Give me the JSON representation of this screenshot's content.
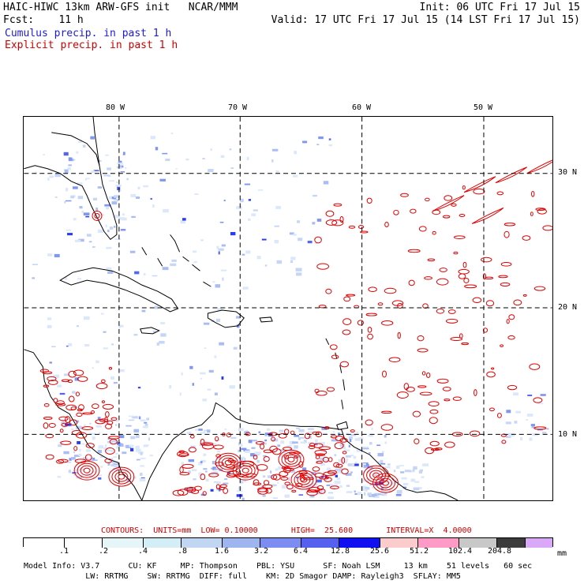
{
  "header": {
    "model_line": "HAIC-HIWC 13km ARW-GFS init   NCAR/MMM",
    "fcst_line": "Fcst:    11 h",
    "init_line": "Init: 06 UTC Fri 17 Jul 15",
    "valid_line": "Valid: 17 UTC Fri 17 Jul 15 (14 LST Fri 17 Jul 15)",
    "cumulus_line": "Cumulus precip. in past 1 h",
    "explicit_line": "Explicit precip. in past 1 h"
  },
  "map": {
    "lon_labels": [
      "80 W",
      "70 W",
      "60 W",
      "50 W"
    ],
    "lat_labels": [
      "30 N",
      "20 N",
      "10 N"
    ],
    "land_color": "#000000",
    "cumulus_color": "#3355ee",
    "explicit_color": "#e00000"
  },
  "contours_info": {
    "text": "CONTOURS:  UNITS=mm  LOW= 0.10000       HIGH=  25.600       INTERVAL=X  4.0000"
  },
  "legend": {
    "unit": "mm",
    "ticks": [
      ".1",
      ".2",
      ".4",
      ".8",
      "1.6",
      "3.2",
      "6.4",
      "12.8",
      "25.6",
      "51.2",
      "102.4",
      "204.8"
    ],
    "colors": [
      "#ffffff",
      "#ffffff",
      "#e6f5f8",
      "#d4eef8",
      "#c0d6f2",
      "#9fb5f0",
      "#7d8cf0",
      "#5560ee",
      "#1010f0",
      "#fccccc",
      "#ff99c6",
      "#c8c8c8",
      "#3c3c3c",
      "#d9a8f8"
    ]
  },
  "footer": {
    "line1": "Model Info: V3.7      CU: KF     MP: Thompson    PBL: YSU      SF: Noah LSM     13 km    51 levels   60 sec",
    "line2": "             LW: RRTMG    SW: RRTMG  DIFF: full    KM: 2D Smagor DAMP: Rayleigh3  SFLAY: MM5"
  }
}
